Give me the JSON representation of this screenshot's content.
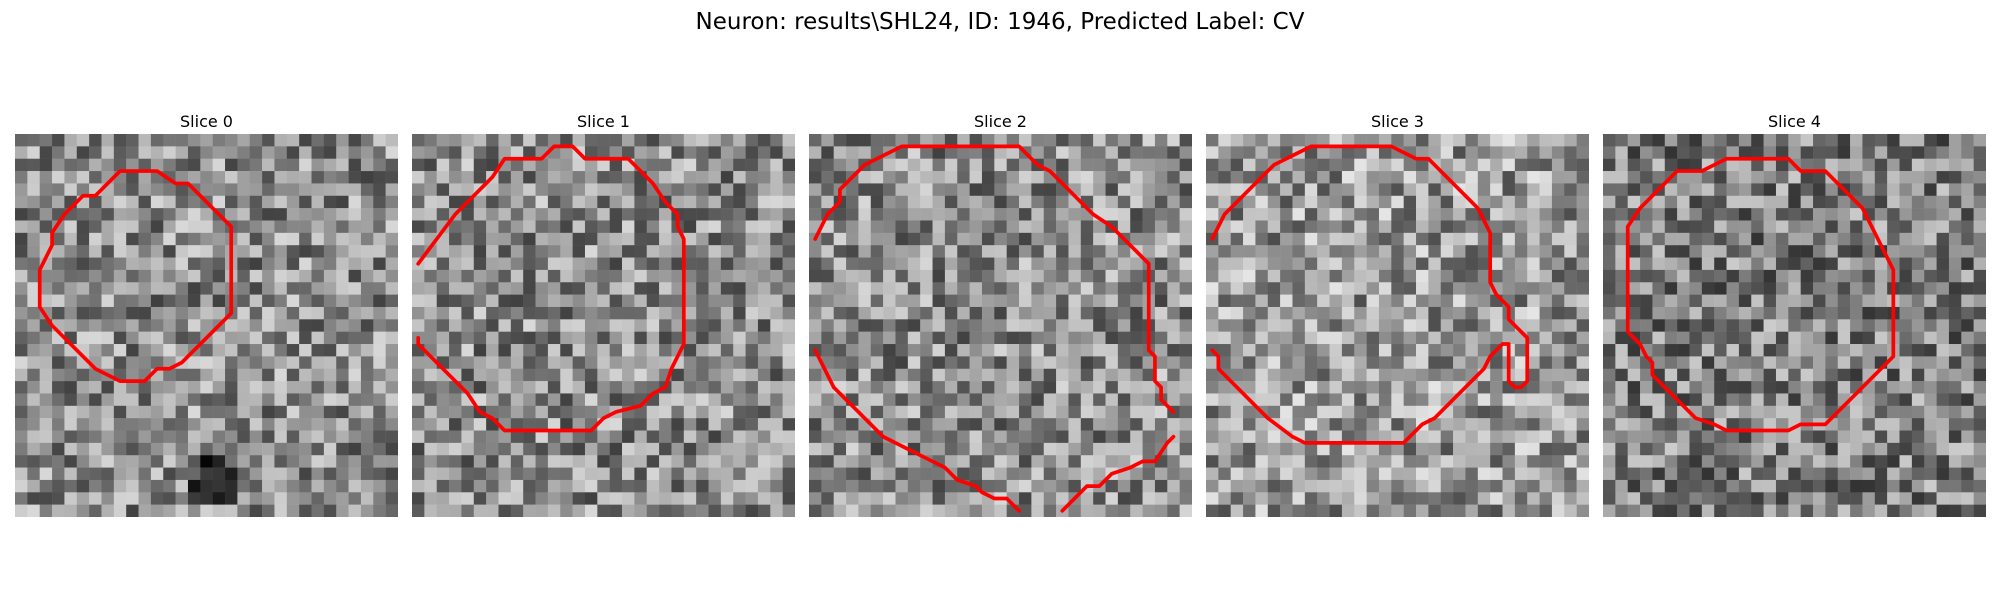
{
  "figure": {
    "title": "Neuron: results\\SHL24, ID: 1946, Predicted Label: CV",
    "contour_color": "#ff0000"
  },
  "panels": [
    {
      "title": "Slice 0",
      "seed": 11,
      "brightness": 0.0,
      "dark_spot": true
    },
    {
      "title": "Slice 1",
      "seed": 23,
      "brightness": 0.0,
      "dark_spot": false
    },
    {
      "title": "Slice 2",
      "seed": 37,
      "brightness": 0.0,
      "dark_spot": false
    },
    {
      "title": "Slice 3",
      "seed": 51,
      "brightness": 0.05,
      "dark_spot": false
    },
    {
      "title": "Slice 4",
      "seed": 67,
      "brightness": -0.05,
      "dark_spot": false
    }
  ]
}
